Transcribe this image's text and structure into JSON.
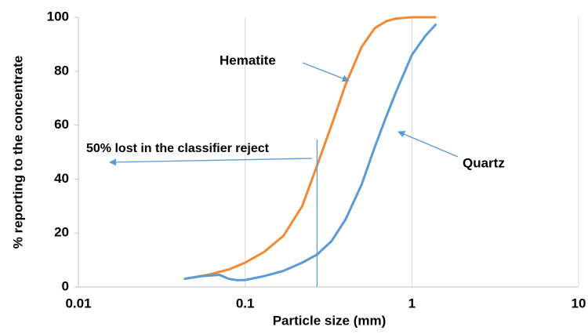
{
  "chart_data": {
    "type": "line",
    "xlabel": "Particle size (mm)",
    "ylabel": "% reporting to the concentrate",
    "xscale": "log",
    "xlim": [
      0.01,
      10
    ],
    "xticks": [
      0.01,
      0.1,
      1,
      10
    ],
    "ylim": [
      0,
      100
    ],
    "yticks": [
      0,
      20,
      40,
      60,
      80,
      100
    ],
    "grid": true,
    "series": [
      {
        "name": "Hematite",
        "color": "#f28a35",
        "x": [
          0.043,
          0.06,
          0.08,
          0.1,
          0.13,
          0.17,
          0.22,
          0.27,
          0.33,
          0.4,
          0.5,
          0.6,
          0.7,
          0.8,
          1.0,
          1.4
        ],
        "values": [
          3,
          4.5,
          6.5,
          9,
          13,
          19,
          30,
          45,
          60,
          75,
          89,
          96,
          98.5,
          99.5,
          100,
          100
        ]
      },
      {
        "name": "Quartz",
        "color": "#5b9bd5",
        "x": [
          0.043,
          0.055,
          0.07,
          0.08,
          0.09,
          0.1,
          0.13,
          0.17,
          0.22,
          0.27,
          0.33,
          0.4,
          0.5,
          0.6,
          0.7,
          0.8,
          1.0,
          1.2,
          1.4
        ],
        "values": [
          3,
          4,
          4.5,
          3,
          2.5,
          2.6,
          4,
          6,
          9,
          12,
          17,
          25,
          38,
          52,
          63,
          72,
          86,
          93,
          97.5
        ]
      }
    ],
    "annotations": [
      {
        "text": "Hematite",
        "series": 0
      },
      {
        "text": "Quartz",
        "series": 1
      },
      {
        "text": "50% lost in the classifier reject",
        "x": 0.27
      }
    ]
  }
}
